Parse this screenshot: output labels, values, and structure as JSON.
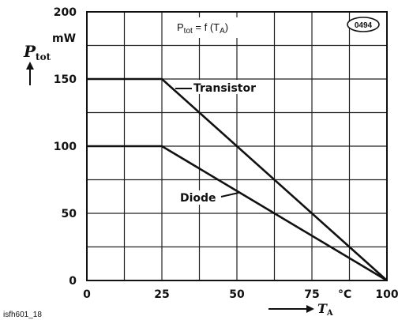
{
  "chart_data": {
    "type": "line",
    "title": "P",
    "title_sub": "tot",
    "title_eq": " = f (T",
    "title_sub2": "A",
    "title_end": ")",
    "badge": "0494",
    "xunit": "°C",
    "xlabel_main": "T",
    "xlabel_sub": "A",
    "yunit": "mW",
    "ylabel_main": "P",
    "ylabel_sub": "tot",
    "x_ticks": [
      "0",
      "25",
      "50",
      "75",
      "100"
    ],
    "y_ticks": [
      "0",
      "50",
      "100",
      "150",
      "200"
    ],
    "xlim": [
      0,
      100
    ],
    "ylim": [
      0,
      200
    ],
    "grid": true,
    "series": [
      {
        "name": "Transistor",
        "x": [
          0,
          25,
          100
        ],
        "y": [
          150,
          150,
          0
        ]
      },
      {
        "name": "Diode",
        "x": [
          0,
          25,
          100
        ],
        "y": [
          100,
          100,
          0
        ]
      }
    ],
    "footer": "isfh601_18"
  }
}
